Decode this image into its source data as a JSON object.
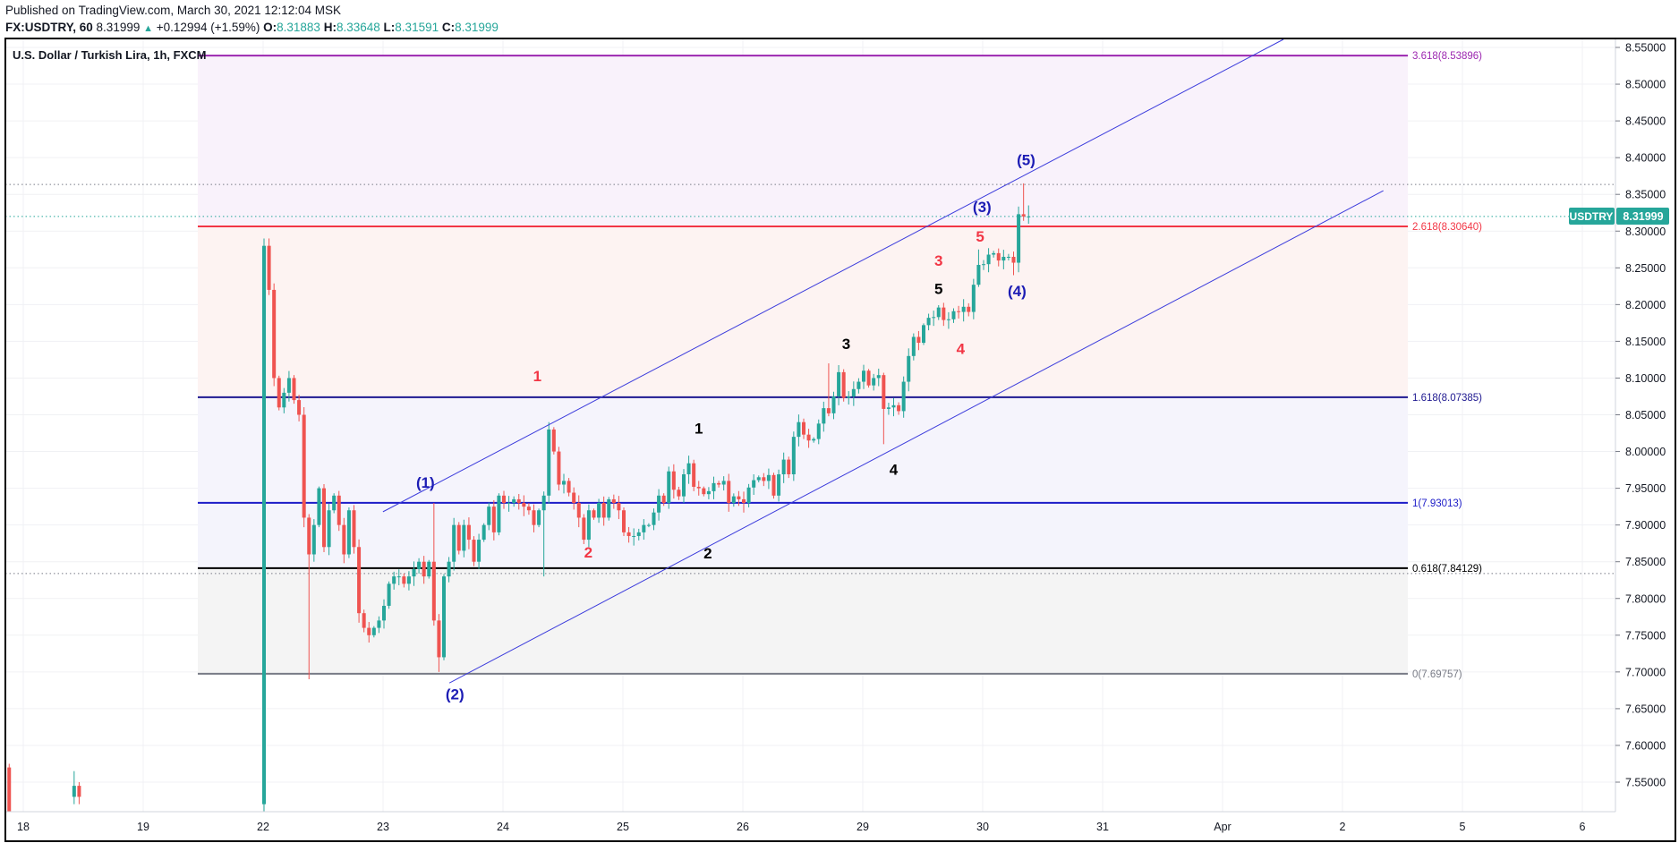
{
  "header": {
    "published": "Published on TradingView.com, March 30, 2021 12:12:04 MSK",
    "symbol": "FX:USDTRY, 60",
    "last": "8.31999",
    "change": "+0.12994 (+1.59%)",
    "o_label": "O:",
    "o": "8.31883",
    "h_label": "H:",
    "h": "8.33648",
    "l_label": "L:",
    "l": "8.31591",
    "c_label": "C:",
    "c": "8.31999"
  },
  "chart_title": "U.S. Dollar / Turkish Lira, 1h, FXCM",
  "price_badge": {
    "symbol": "USDTRY",
    "price": "8.31999"
  },
  "colors": {
    "up": "#26a69a",
    "down": "#ef5350",
    "channel": "#3c3cdc"
  },
  "chart_data": {
    "type": "candlestick",
    "title": "U.S. Dollar / Turkish Lira, 1h, FXCM",
    "ylim": [
      7.5,
      8.56
    ],
    "y_ticks": [
      "8.55000",
      "8.50000",
      "8.45000",
      "8.40000",
      "8.35000",
      "8.30000",
      "8.25000",
      "8.20000",
      "8.15000",
      "8.10000",
      "8.05000",
      "8.00000",
      "7.95000",
      "7.90000",
      "7.85000",
      "7.80000",
      "7.75000",
      "7.70000",
      "7.65000",
      "7.60000",
      "7.55000"
    ],
    "x_ticks": [
      {
        "label": "18",
        "day": -2
      },
      {
        "label": "19",
        "day": -1
      },
      {
        "label": "22",
        "day": 0
      },
      {
        "label": "23",
        "day": 1
      },
      {
        "label": "24",
        "day": 2
      },
      {
        "label": "25",
        "day": 3
      },
      {
        "label": "26",
        "day": 4
      },
      {
        "label": "29",
        "day": 5
      },
      {
        "label": "30",
        "day": 6
      },
      {
        "label": "31",
        "day": 7
      },
      {
        "label": "Apr",
        "day": 8
      },
      {
        "label": "2",
        "day": 9
      },
      {
        "label": "5",
        "day": 10
      },
      {
        "label": "6",
        "day": 11
      }
    ],
    "first_open": 7.52,
    "closes": [
      8.28,
      8.22,
      8.1,
      8.06,
      8.08,
      8.1,
      8.07,
      8.05,
      7.91,
      7.86,
      7.9,
      7.95,
      7.87,
      7.92,
      7.94,
      7.9,
      7.86,
      7.92,
      7.87,
      7.78,
      7.76,
      7.75,
      7.76,
      7.77,
      7.79,
      7.82,
      7.83,
      7.83,
      7.82,
      7.83,
      7.84,
      7.85,
      7.83,
      7.85,
      7.77,
      7.72,
      7.83,
      7.85,
      7.9,
      7.865,
      7.9,
      7.88,
      7.85,
      7.88,
      7.9,
      7.925,
      7.89,
      7.94,
      7.93,
      7.93,
      7.935,
      7.93,
      7.925,
      7.92,
      7.9,
      7.92,
      7.94,
      8.03,
      8.0,
      7.955,
      7.96,
      7.944,
      7.93,
      7.91,
      7.88,
      7.92,
      7.91,
      7.93,
      7.91,
      7.935,
      7.93,
      7.92,
      7.89,
      7.885,
      7.885,
      7.89,
      7.9,
      7.9,
      7.917,
      7.94,
      7.93,
      7.973,
      7.948,
      7.939,
      7.969,
      7.984,
      7.952,
      7.95,
      7.942,
      7.946,
      7.957,
      7.955,
      7.96,
      7.93,
      7.939,
      7.935,
      7.93,
      7.951,
      7.961,
      7.965,
      7.96,
      7.968,
      7.94,
      7.969,
      7.989,
      7.969,
      8.02,
      8.04,
      8.023,
      8.015,
      8.017,
      8.038,
      8.059,
      8.052,
      8.075,
      8.108,
      8.073,
      8.075,
      8.085,
      8.095,
      8.11,
      8.09,
      8.1,
      8.104,
      8.058,
      8.06,
      8.063,
      8.055,
      8.095,
      8.13,
      8.156,
      8.148,
      8.172,
      8.182,
      8.183,
      8.196,
      8.179,
      8.18,
      8.191,
      8.19,
      8.197,
      8.19,
      8.227,
      8.254,
      8.255,
      8.268,
      8.27,
      8.26,
      8.265,
      8.265,
      8.257,
      8.323,
      8.32,
      8.32
    ],
    "extremes": [
      {
        "i": 0,
        "high": 8.29,
        "low": 7.5
      },
      {
        "i": 1,
        "high": 8.29
      },
      {
        "i": 9,
        "low": 7.69
      },
      {
        "i": 35,
        "low": 7.7
      },
      {
        "i": 34,
        "high": 7.93
      },
      {
        "i": 57,
        "high": 8.04
      },
      {
        "i": 56,
        "low": 7.83
      },
      {
        "i": 124,
        "low": 8.01
      },
      {
        "i": 113,
        "high": 8.12
      },
      {
        "i": 143,
        "high": 8.275
      },
      {
        "i": 150,
        "low": 8.24
      },
      {
        "i": 152,
        "high": 8.365
      },
      {
        "i": 153,
        "high": 8.335
      }
    ],
    "early_candles": [
      {
        "hour": -51,
        "open": 7.57,
        "high": 7.575,
        "low": 7.5,
        "close": 7.51
      },
      {
        "hour": -38,
        "open": 7.53,
        "high": 7.565,
        "low": 7.52,
        "close": 7.545
      },
      {
        "hour": -37,
        "open": 7.545,
        "high": 7.55,
        "low": 7.52,
        "close": 7.53
      }
    ],
    "fib_levels": [
      {
        "ratio": "3.618",
        "price": 8.53896,
        "label": "3.618(8.53896)",
        "color": "#9c27b0",
        "fill": "#f9f2fb"
      },
      {
        "ratio": "2.618",
        "price": 8.3064,
        "label": "2.618(8.30640)",
        "color": "#f23645",
        "fill": "#fdf3f2"
      },
      {
        "ratio": "1.618",
        "price": 8.07385,
        "label": "1.618(8.07385)",
        "color": "#1e1890",
        "fill": "#f5f4fc"
      },
      {
        "ratio": "1",
        "price": 7.93013,
        "label": "1(7.93013)",
        "color": "#1c1cc8",
        "fill": "#f4f4fc"
      },
      {
        "ratio": "0.618",
        "price": 7.84129,
        "label": "0.618(7.84129)",
        "color": "#000000",
        "fill": "#f4f4f4"
      },
      {
        "ratio": "0",
        "price": 7.69757,
        "label": "0(7.69757)",
        "color": "#787b86",
        "fill": null
      }
    ],
    "horizontal_dotted": [
      {
        "price": 8.3635,
        "color": "#787b86"
      },
      {
        "price": 8.31999,
        "color": "#26a69a"
      },
      {
        "price": 7.834,
        "color": "#787b86"
      }
    ],
    "channel": [
      {
        "name": "upper",
        "from": {
          "i": 23.8,
          "price": 7.918
        },
        "to": {
          "i": 204,
          "price": 8.563
        }
      },
      {
        "name": "lower",
        "from": {
          "i": 37.1,
          "price": 7.685
        },
        "to": {
          "i": 224,
          "price": 8.355
        }
      }
    ],
    "annotations": [
      {
        "text": "1",
        "color": "#f23645",
        "i": 54.7,
        "price": 8.103
      },
      {
        "text": "2",
        "color": "#f23645",
        "i": 64.9,
        "price": 7.863
      },
      {
        "text": "3",
        "color": "#f23645",
        "i": 135,
        "price": 8.26
      },
      {
        "text": "4",
        "color": "#f23645",
        "i": 139.4,
        "price": 8.14
      },
      {
        "text": "5",
        "color": "#f23645",
        "i": 143.3,
        "price": 8.293
      },
      {
        "text": "1",
        "color": "#000000",
        "i": 87,
        "price": 8.032
      },
      {
        "text": "2",
        "color": "#000000",
        "i": 88.8,
        "price": 7.862
      },
      {
        "text": "3",
        "color": "#000000",
        "i": 116.5,
        "price": 8.147
      },
      {
        "text": "4",
        "color": "#000000",
        "i": 126,
        "price": 7.976
      },
      {
        "text": "5",
        "color": "#000000",
        "i": 135,
        "price": 8.222
      },
      {
        "text": "(1)",
        "color": "#1c1cb4",
        "i": 32.3,
        "price": 7.958
      },
      {
        "text": "(2)",
        "color": "#1c1cb4",
        "i": 38.2,
        "price": 7.67
      },
      {
        "text": "(3)",
        "color": "#1c1cb4",
        "i": 143.7,
        "price": 8.333
      },
      {
        "text": "(4)",
        "color": "#1c1cb4",
        "i": 150.7,
        "price": 8.219
      },
      {
        "text": "(5)",
        "color": "#1c1cb4",
        "i": 152.5,
        "price": 8.397
      }
    ]
  }
}
